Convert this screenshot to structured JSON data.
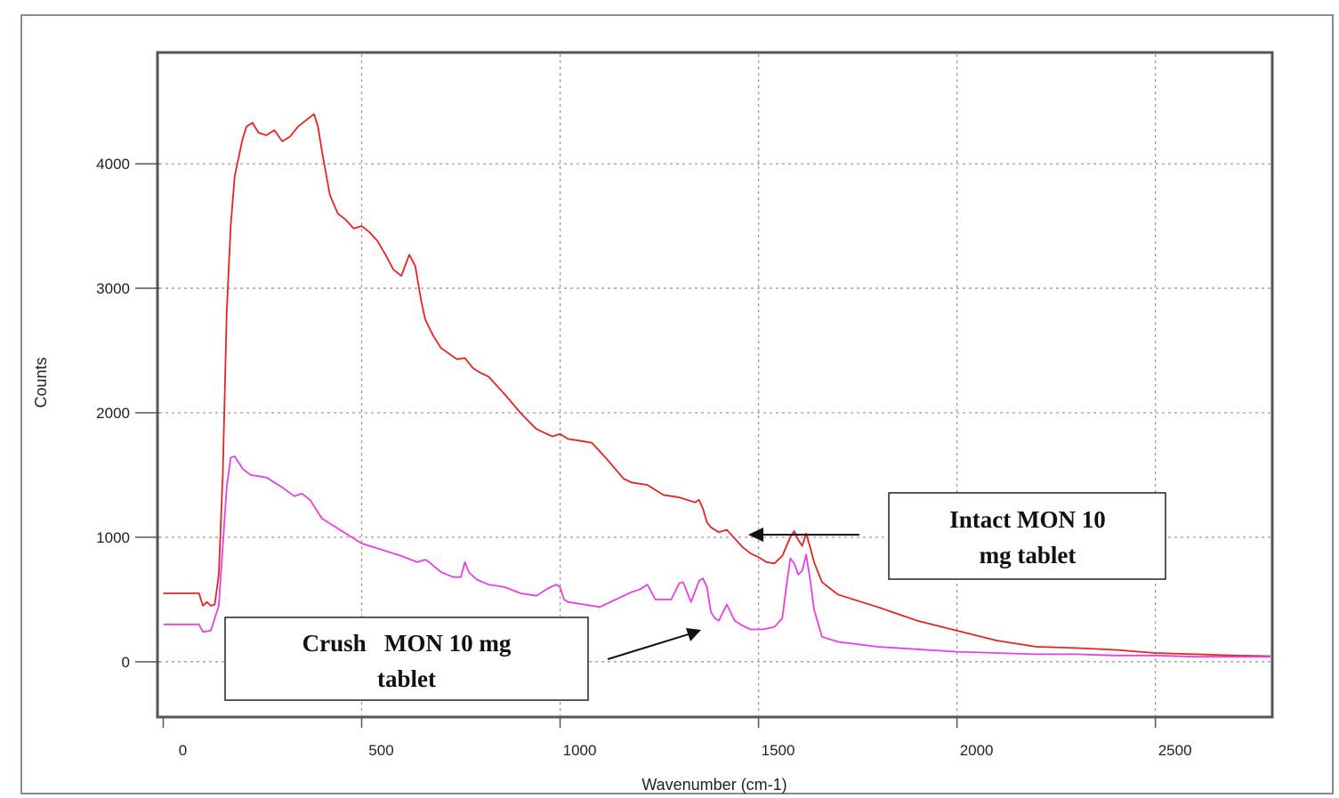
{
  "chart_data": {
    "type": "line",
    "xlabel": "Wavenumber (cm-1)",
    "ylabel": "Counts",
    "xlim": [
      -10,
      2790
    ],
    "ylim": [
      -430,
      4880
    ],
    "xticks": [
      0,
      500,
      1000,
      1500,
      2000,
      2500
    ],
    "xtick_labels": [
      "0",
      "500",
      "1000",
      "1500",
      "2000",
      "2500"
    ],
    "yticks": [
      0,
      1000,
      2000,
      3000,
      4000
    ],
    "ytick_labels": [
      "0",
      "1000",
      "2000",
      "3000",
      "4000"
    ],
    "grid": true,
    "colors": {
      "intact": "#e8231e",
      "crush": "#e83ee8",
      "grid": "#9a9a9a",
      "frame": "#555555"
    },
    "series": [
      {
        "key": "intact",
        "x": [
          0,
          90,
          100,
          110,
          120,
          130,
          140,
          150,
          160,
          170,
          180,
          190,
          200,
          210,
          225,
          240,
          260,
          280,
          300,
          320,
          340,
          360,
          380,
          390,
          400,
          420,
          440,
          460,
          480,
          500,
          520,
          540,
          560,
          580,
          600,
          620,
          635,
          650,
          660,
          680,
          700,
          740,
          760,
          780,
          800,
          820,
          860,
          900,
          940,
          980,
          1000,
          1020,
          1060,
          1080,
          1120,
          1160,
          1180,
          1220,
          1260,
          1300,
          1340,
          1350,
          1360,
          1370,
          1380,
          1400,
          1420,
          1440,
          1460,
          1480,
          1500,
          1520,
          1540,
          1560,
          1580,
          1590,
          1600,
          1610,
          1620,
          1630,
          1640,
          1660,
          1700,
          1800,
          1900,
          2000,
          2100,
          2200,
          2300,
          2400,
          2500,
          2600,
          2700,
          2790
        ],
        "values": [
          550,
          550,
          450,
          480,
          450,
          460,
          700,
          1500,
          2800,
          3500,
          3900,
          4050,
          4200,
          4300,
          4330,
          4250,
          4230,
          4270,
          4180,
          4220,
          4300,
          4350,
          4400,
          4300,
          4100,
          3750,
          3600,
          3550,
          3480,
          3500,
          3450,
          3380,
          3270,
          3150,
          3100,
          3270,
          3180,
          2900,
          2750,
          2620,
          2520,
          2430,
          2440,
          2360,
          2320,
          2290,
          2150,
          2000,
          1870,
          1810,
          1830,
          1790,
          1770,
          1760,
          1620,
          1470,
          1440,
          1420,
          1340,
          1320,
          1280,
          1300,
          1230,
          1120,
          1080,
          1040,
          1060,
          990,
          920,
          870,
          840,
          800,
          790,
          850,
          1000,
          1050,
          980,
          930,
          1030,
          920,
          800,
          640,
          540,
          440,
          330,
          250,
          170,
          120,
          110,
          95,
          70,
          60,
          50,
          45
        ]
      },
      {
        "key": "crush",
        "x": [
          0,
          90,
          100,
          120,
          140,
          160,
          170,
          180,
          200,
          220,
          240,
          260,
          280,
          300,
          330,
          350,
          370,
          400,
          450,
          500,
          550,
          600,
          640,
          660,
          670,
          700,
          730,
          750,
          760,
          770,
          790,
          820,
          860,
          900,
          940,
          970,
          990,
          1000,
          1010,
          1020,
          1060,
          1100,
          1140,
          1180,
          1200,
          1220,
          1240,
          1280,
          1300,
          1310,
          1330,
          1350,
          1360,
          1370,
          1380,
          1390,
          1400,
          1420,
          1440,
          1460,
          1480,
          1510,
          1540,
          1560,
          1570,
          1580,
          1590,
          1600,
          1610,
          1620,
          1630,
          1640,
          1660,
          1680,
          1700,
          1800,
          1900,
          2000,
          2100,
          2200,
          2300,
          2400,
          2500,
          2600,
          2700,
          2790
        ],
        "values": [
          300,
          300,
          240,
          250,
          450,
          1400,
          1640,
          1650,
          1550,
          1500,
          1490,
          1480,
          1440,
          1400,
          1330,
          1350,
          1300,
          1150,
          1050,
          950,
          900,
          850,
          800,
          820,
          800,
          720,
          680,
          680,
          800,
          720,
          660,
          620,
          600,
          550,
          530,
          590,
          620,
          600,
          500,
          480,
          460,
          440,
          500,
          560,
          580,
          620,
          500,
          500,
          630,
          640,
          480,
          650,
          670,
          600,
          400,
          350,
          330,
          460,
          330,
          290,
          260,
          260,
          280,
          350,
          600,
          830,
          790,
          700,
          730,
          860,
          660,
          420,
          200,
          180,
          160,
          120,
          100,
          80,
          70,
          60,
          60,
          50,
          50,
          40,
          40,
          40
        ]
      }
    ],
    "annotations": {
      "intact_lines": [
        "Intact MON 10",
        "mg tablet"
      ],
      "crush_lines": [
        "Crush   MON 10 mg",
        "tablet"
      ]
    }
  }
}
